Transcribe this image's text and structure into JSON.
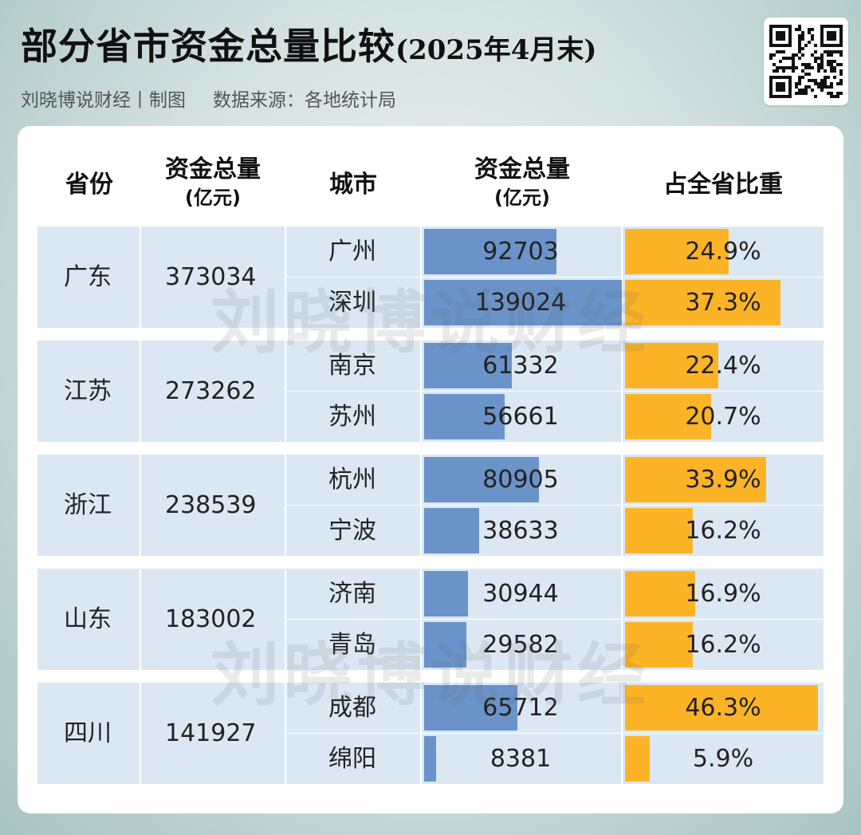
{
  "title": "部分省市资金总量比较",
  "title_date": "(2025年4月末)",
  "credit": "刘晓博说财经丨制图",
  "source": "数据来源：各地统计局",
  "watermark": "刘晓博说财经",
  "headers": {
    "province": "省份",
    "province_total": "资金总量",
    "province_total_unit": "(亿元)",
    "city": "城市",
    "city_total": "资金总量",
    "city_total_unit": "(亿元)",
    "share": "占全省比重"
  },
  "colors": {
    "bar": "#6a93c9",
    "share_bar": "#fcb426",
    "cell": "#dbe8f4"
  },
  "chart_data": {
    "type": "table",
    "bar_max": 140000,
    "share_max": 47,
    "provinces": [
      {
        "name": "广东",
        "total": "373034",
        "cities": [
          {
            "name": "广州",
            "total": 92703,
            "total_label": "92703",
            "share": 24.9,
            "share_label": "24.9%"
          },
          {
            "name": "深圳",
            "total": 139024,
            "total_label": "139024",
            "share": 37.3,
            "share_label": "37.3%"
          }
        ]
      },
      {
        "name": "江苏",
        "total": "273262",
        "cities": [
          {
            "name": "南京",
            "total": 61332,
            "total_label": "61332",
            "share": 22.4,
            "share_label": "22.4%"
          },
          {
            "name": "苏州",
            "total": 56661,
            "total_label": "56661",
            "share": 20.7,
            "share_label": "20.7%"
          }
        ]
      },
      {
        "name": "浙江",
        "total": "238539",
        "cities": [
          {
            "name": "杭州",
            "total": 80905,
            "total_label": "80905",
            "share": 33.9,
            "share_label": "33.9%"
          },
          {
            "name": "宁波",
            "total": 38633,
            "total_label": "38633",
            "share": 16.2,
            "share_label": "16.2%"
          }
        ]
      },
      {
        "name": "山东",
        "total": "183002",
        "cities": [
          {
            "name": "济南",
            "total": 30944,
            "total_label": "30944",
            "share": 16.9,
            "share_label": "16.9%"
          },
          {
            "name": "青岛",
            "total": 29582,
            "total_label": "29582",
            "share": 16.2,
            "share_label": "16.2%"
          }
        ]
      },
      {
        "name": "四川",
        "total": "141927",
        "cities": [
          {
            "name": "成都",
            "total": 65712,
            "total_label": "65712",
            "share": 46.3,
            "share_label": "46.3%"
          },
          {
            "name": "绵阳",
            "total": 8381,
            "total_label": "8381",
            "share": 5.9,
            "share_label": "5.9%"
          }
        ]
      }
    ]
  }
}
